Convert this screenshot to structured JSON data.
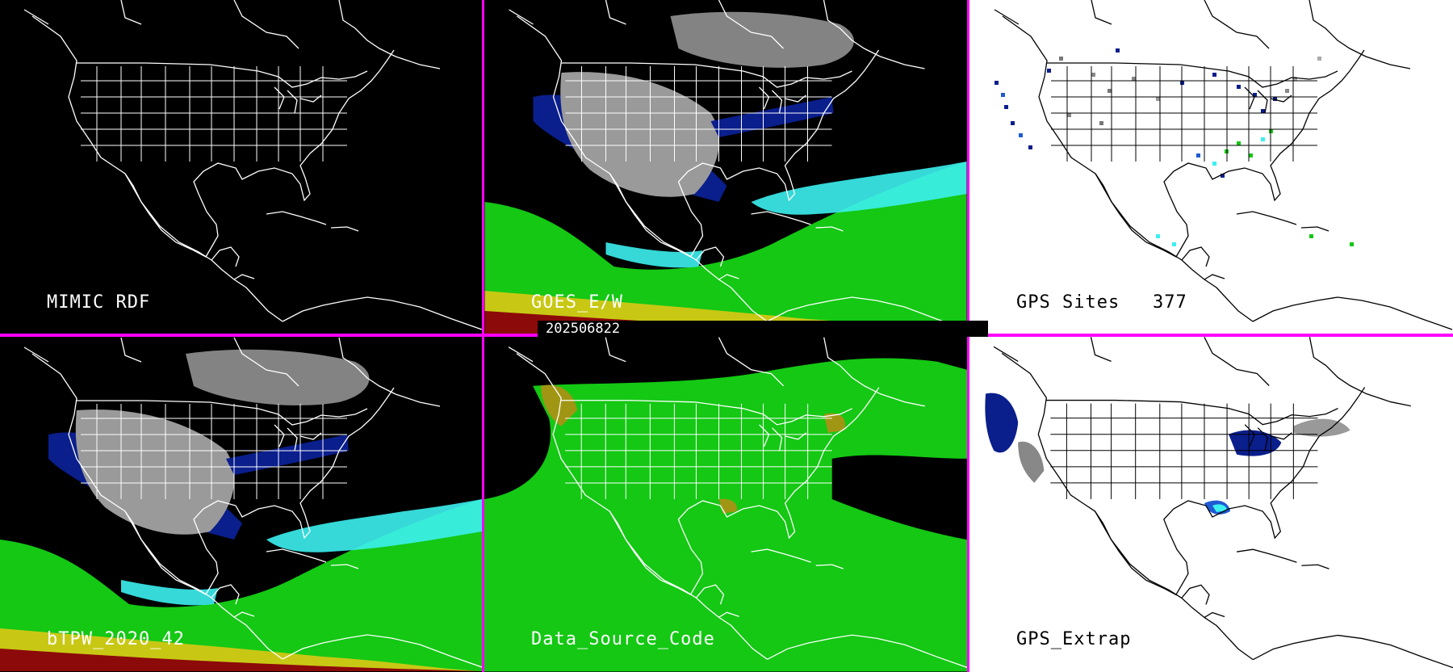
{
  "timestamp": "202506822",
  "panels": [
    {
      "id": "mimic-rdf",
      "label": "MIMIC RDF",
      "count": "",
      "theme": "dark",
      "layer": "none"
    },
    {
      "id": "goes-e-w",
      "label": "GOES_E/W",
      "count": "",
      "theme": "dark",
      "layer": "tpw"
    },
    {
      "id": "gps-sites",
      "label": "GPS Sites",
      "count": "377",
      "theme": "light",
      "layer": "sites"
    },
    {
      "id": "btpw-2020-42",
      "label": "bTPW_2020_42",
      "count": "",
      "theme": "dark",
      "layer": "tpw"
    },
    {
      "id": "data-source-code",
      "label": "Data_Source_Code",
      "count": "",
      "theme": "dark",
      "layer": "source"
    },
    {
      "id": "gps-extrap",
      "label": "GPS_Extrap",
      "count": "",
      "theme": "light",
      "layer": "extrap"
    }
  ],
  "colors": {
    "divider": "#ff00ff",
    "map_lines_dark": "#ffffff",
    "map_lines_light": "#000000",
    "gray_dry": "#9a9a9a",
    "navy": "#0a1e8c",
    "blue": "#1e5ad2",
    "cyan": "#3cf0f0",
    "green": "#14c814",
    "yellow": "#c8c814",
    "red": "#8c0a0a",
    "olive": "#a09614"
  }
}
